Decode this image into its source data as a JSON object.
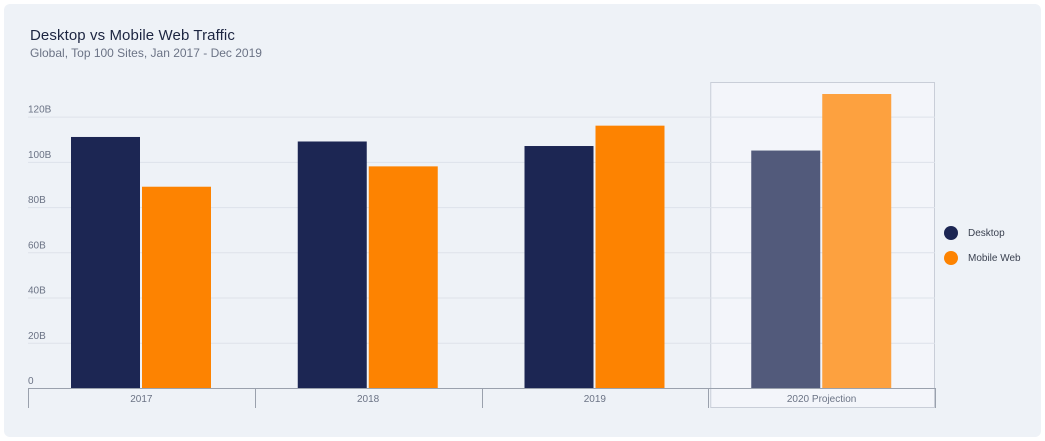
{
  "chart_data": {
    "type": "bar",
    "title": "Desktop vs Mobile Web Traffic",
    "subtitle": "Global, Top 100 Sites, Jan 2017 - Dec 2019",
    "categories": [
      "2017",
      "2018",
      "2019",
      "2020 Projection"
    ],
    "projection_category": "2020 Projection",
    "series": [
      {
        "name": "Desktop",
        "values": [
          111,
          109,
          107,
          105
        ],
        "color": "#1c2653",
        "projection_color": "#525a7b"
      },
      {
        "name": "Mobile Web",
        "values": [
          89,
          98,
          116,
          130
        ],
        "color": "#fd8301",
        "projection_color": "#fda13f"
      }
    ],
    "y_ticks": [
      "0",
      "20B",
      "40B",
      "60B",
      "80B",
      "100B",
      "120B"
    ],
    "y_unit": "B",
    "ylim": [
      0,
      130
    ],
    "grid": true,
    "legend_position": "right"
  }
}
